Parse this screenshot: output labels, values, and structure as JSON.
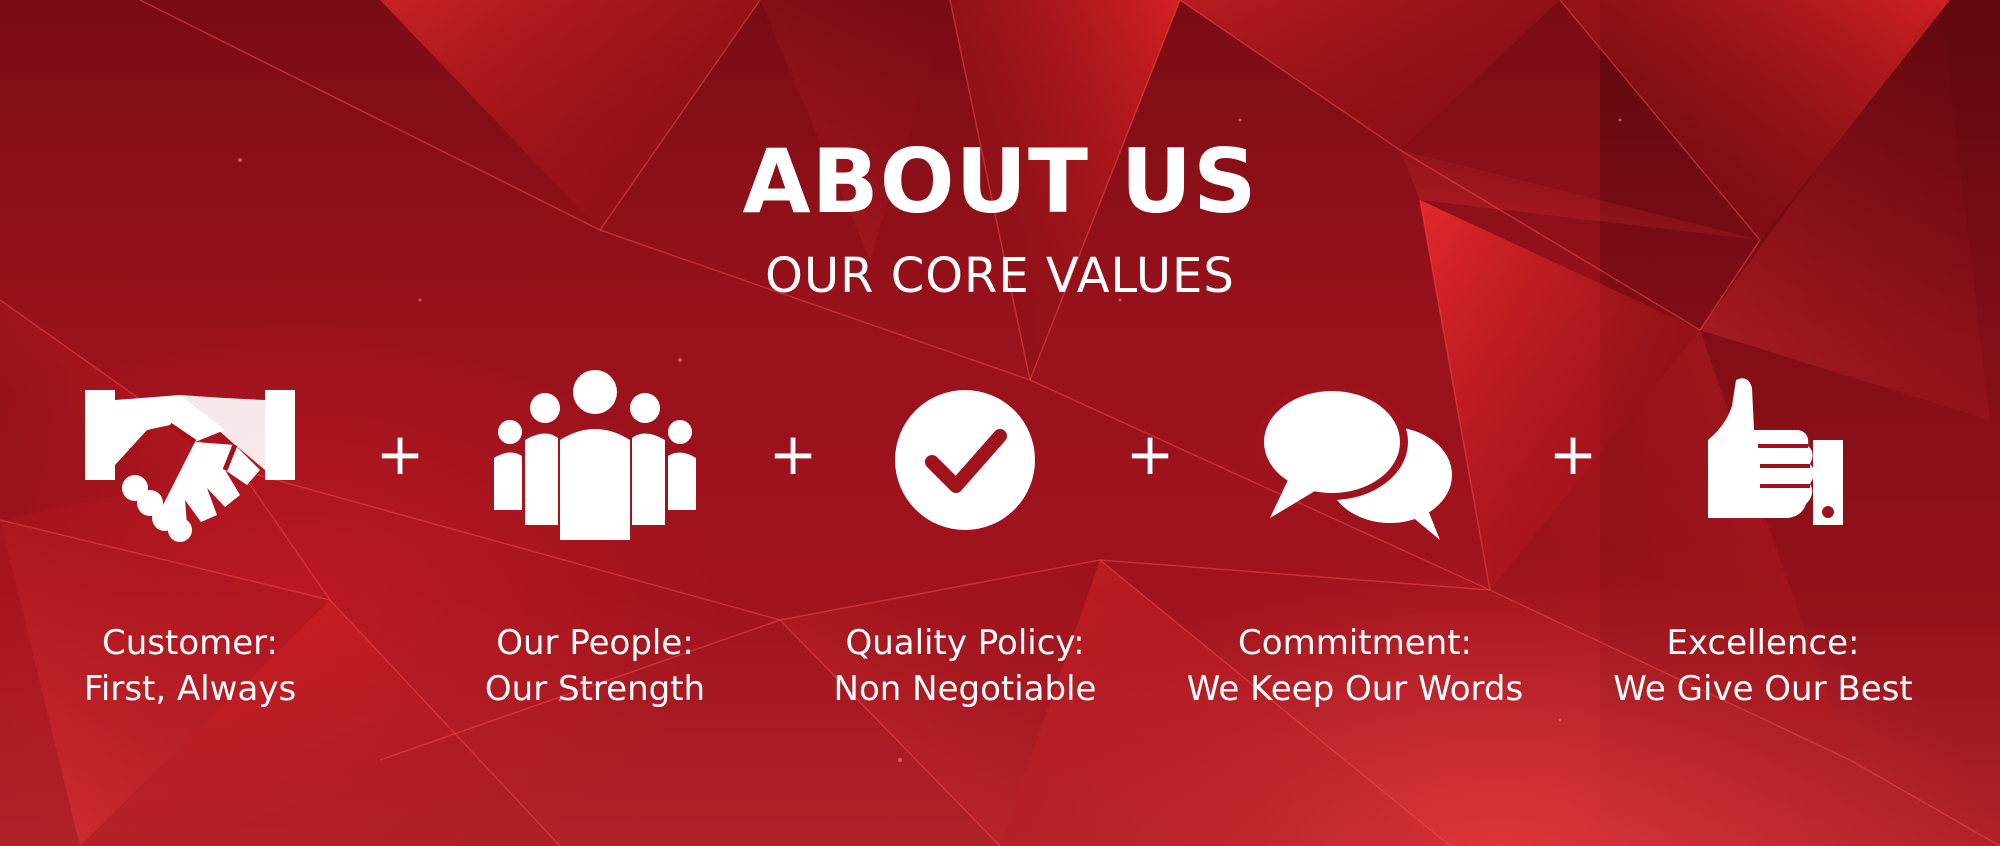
{
  "header": {
    "title": "ABOUT US",
    "subtitle": "OUR CORE VALUES"
  },
  "colors": {
    "background": "#9a121c",
    "accent": "#ff2a2a",
    "text": "#ffffff"
  },
  "separator": "+",
  "values": [
    {
      "icon": "handshake-icon",
      "line1": "Customer:",
      "line2": "First, Always"
    },
    {
      "icon": "people-group-icon",
      "line1": "Our People:",
      "line2": "Our Strength"
    },
    {
      "icon": "checkmark-circle-icon",
      "line1": "Quality Policy:",
      "line2": "Non Negotiable"
    },
    {
      "icon": "speech-bubbles-icon",
      "line1": "Commitment:",
      "line2": "We Keep Our Words"
    },
    {
      "icon": "thumbs-up-icon",
      "line1": "Excellence:",
      "line2": "We Give Our Best"
    }
  ]
}
